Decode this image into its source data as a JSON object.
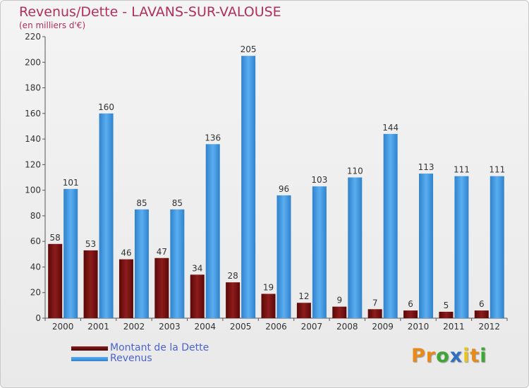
{
  "title": "Revenus/Dette - LAVANS-SUR-VALOUSE",
  "subtitle": "(en milliers d'€)",
  "chart_data": {
    "type": "bar",
    "title": "Revenus/Dette - LAVANS-SUR-VALOUSE",
    "ylabel": "(en milliers d'€)",
    "categories": [
      "2000",
      "2001",
      "2002",
      "2003",
      "2004",
      "2005",
      "2006",
      "2007",
      "2008",
      "2009",
      "2010",
      "2011",
      "2012"
    ],
    "series": [
      {
        "name": "Montant de la Dette",
        "color": "#7a1010",
        "values": [
          58,
          53,
          46,
          47,
          34,
          28,
          19,
          12,
          9,
          7,
          6,
          5,
          6
        ]
      },
      {
        "name": "Revenus",
        "color": "#3d92d9",
        "values": [
          101,
          160,
          85,
          85,
          136,
          205,
          96,
          103,
          110,
          144,
          113,
          111,
          111
        ]
      }
    ],
    "ylim": [
      0,
      220
    ],
    "yticks": [
      0,
      20,
      40,
      60,
      80,
      100,
      120,
      140,
      160,
      180,
      200,
      220
    ],
    "grid": false,
    "legend": "bottom-left"
  },
  "legend": {
    "debt": {
      "label": "Montant de la Dette",
      "color": "#7a1010"
    },
    "revenue": {
      "label": "Revenus",
      "color": "#3d92d9"
    }
  },
  "logo": {
    "letters": [
      "P",
      "r",
      "o",
      "x",
      "i",
      "t",
      "i"
    ],
    "colors": [
      "#e88a1a",
      "#e88a1a",
      "#3fa535",
      "#2e6fc0",
      "#e8c31a",
      "#e88a1a",
      "#3fa535"
    ]
  }
}
